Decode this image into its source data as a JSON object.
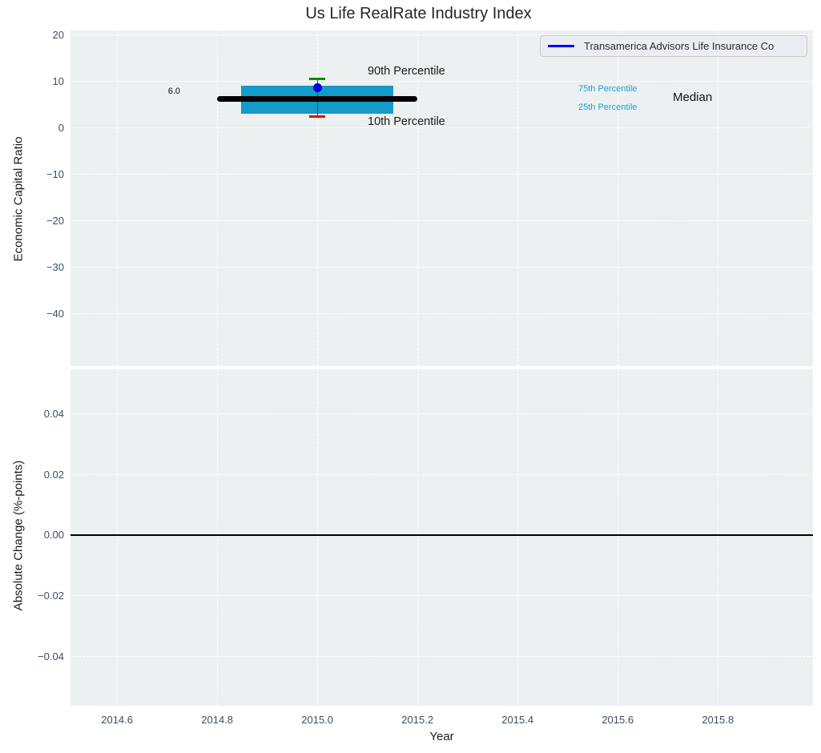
{
  "figure": {
    "title": "Us Life RealRate Industry Index",
    "background": "#ffffff",
    "axes_background": "#edf0f1",
    "tick_color": "#3d4d63"
  },
  "legend": {
    "label": "Transamerica Advisors Life Insurance Co",
    "line_color": "#0000ff"
  },
  "chart_data": [
    {
      "type": "boxplot",
      "title": "Us Life RealRate Industry Index",
      "xlabel": "Year",
      "ylabel": "Economic Capital Ratio",
      "xlim": [
        2014.507,
        2015.99
      ],
      "ylim": [
        -51.3,
        20.9
      ],
      "x_tick_values": [
        2014.6,
        2014.8,
        2015.0,
        2015.2,
        2015.4,
        2015.6,
        2015.8
      ],
      "x_tick_labels": [
        "2014.6",
        "2014.8",
        "2015.0",
        "2015.2",
        "2015.4",
        "2015.6",
        "2015.8"
      ],
      "y_tick_values": [
        20,
        10,
        0,
        -10,
        -20,
        -30,
        -40
      ],
      "y_tick_labels": [
        "20",
        "10",
        "0",
        "−10",
        "−20",
        "−30",
        "−40"
      ],
      "grid": {
        "color": "#ffffff",
        "style": "dashed"
      },
      "box": {
        "year": 2015.0,
        "median": 6.0,
        "q25": 3.0,
        "q75": 9.0,
        "p10": 2.3,
        "p90": 10.5,
        "box_half_width": 0.152,
        "median_half_width": 0.2,
        "box_color": "#149bca",
        "median_color": "#000000",
        "p90_cap_color": "#0b8a0b",
        "p10_cap_color": "#e8000b",
        "whisker_color": "#3a3a3a"
      },
      "company_point": {
        "name": "Transamerica Advisors Life Insurance Co",
        "year": 2015.0,
        "value": 8.7,
        "color": "#0000ee",
        "edge_color": "#0000a0"
      },
      "annotations": {
        "median_value": "6.0",
        "p90_label": "90th Percentile",
        "p10_label": "10th Percentile",
        "p75_label": "75th Percentile",
        "p25_label": "25th Percentile",
        "median_label": "Median",
        "percentile_label_color": "#1c9fd6"
      }
    },
    {
      "type": "line",
      "title": "",
      "xlabel": "Year",
      "ylabel": "Absolute Change (%-points)",
      "xlim": [
        2014.507,
        2015.99
      ],
      "ylim": [
        -0.0564,
        0.0548
      ],
      "x_tick_values": [
        2014.6,
        2014.8,
        2015.0,
        2015.2,
        2015.4,
        2015.6,
        2015.8
      ],
      "x_tick_labels": [
        "2014.6",
        "2014.8",
        "2015.0",
        "2015.2",
        "2015.4",
        "2015.6",
        "2015.8"
      ],
      "y_tick_values": [
        0.04,
        0.02,
        0.0,
        -0.02,
        -0.04
      ],
      "y_tick_labels": [
        "0.04",
        "0.02",
        "0.00",
        "−0.02",
        "−0.04"
      ],
      "grid": {
        "color": "#ffffff",
        "style": "dashed"
      },
      "zero_line": {
        "y": 0.0,
        "color": "#000000"
      },
      "series": []
    }
  ]
}
